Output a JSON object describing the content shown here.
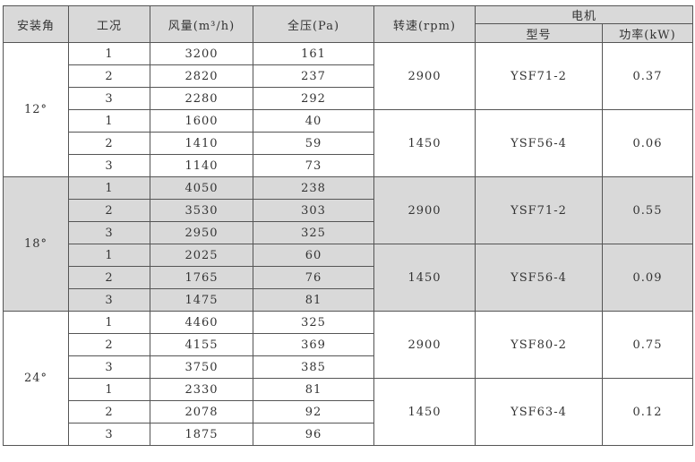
{
  "headers": {
    "angle": "安装角",
    "condition": "工况",
    "airflow": "风量(m³/h)",
    "pressure": "全压(Pa)",
    "speed": "转速(rpm)",
    "motor": "电机",
    "model": "型号",
    "power": "功率(kW)"
  },
  "groups": [
    {
      "angle": "12°",
      "shaded": false,
      "subs": [
        {
          "speed": "2900",
          "model": "YSF71-2",
          "power": "0.37",
          "rows": [
            [
              "1",
              "3200",
              "161"
            ],
            [
              "2",
              "2820",
              "237"
            ],
            [
              "3",
              "2280",
              "292"
            ]
          ]
        },
        {
          "speed": "1450",
          "model": "YSF56-4",
          "power": "0.06",
          "rows": [
            [
              "1",
              "1600",
              "40"
            ],
            [
              "2",
              "1410",
              "59"
            ],
            [
              "3",
              "1140",
              "73"
            ]
          ]
        }
      ]
    },
    {
      "angle": "18°",
      "shaded": true,
      "subs": [
        {
          "speed": "2900",
          "model": "YSF71-2",
          "power": "0.55",
          "rows": [
            [
              "1",
              "4050",
              "238"
            ],
            [
              "2",
              "3530",
              "303"
            ],
            [
              "3",
              "2950",
              "325"
            ]
          ]
        },
        {
          "speed": "1450",
          "model": "YSF56-4",
          "power": "0.09",
          "rows": [
            [
              "1",
              "2025",
              "60"
            ],
            [
              "2",
              "1765",
              "76"
            ],
            [
              "3",
              "1475",
              "81"
            ]
          ]
        }
      ]
    },
    {
      "angle": "24°",
      "shaded": false,
      "subs": [
        {
          "speed": "2900",
          "model": "YSF80-2",
          "power": "0.75",
          "rows": [
            [
              "1",
              "4460",
              "325"
            ],
            [
              "2",
              "4155",
              "369"
            ],
            [
              "3",
              "3750",
              "385"
            ]
          ]
        },
        {
          "speed": "1450",
          "model": "YSF63-4",
          "power": "0.12",
          "rows": [
            [
              "1",
              "2330",
              "81"
            ],
            [
              "2",
              "2078",
              "92"
            ],
            [
              "3",
              "1875",
              "96"
            ]
          ]
        }
      ]
    }
  ]
}
